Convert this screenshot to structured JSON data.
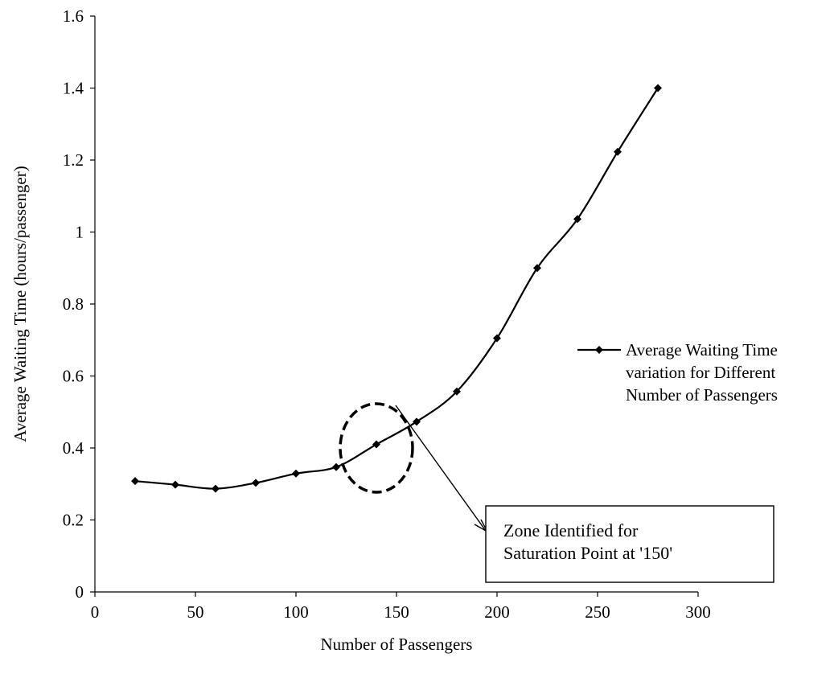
{
  "chart_data": {
    "type": "line",
    "title": "",
    "xlabel": "Number of Passengers",
    "ylabel": "Average Waiting Time (hours/passenger)",
    "xlim": [
      0,
      300
    ],
    "ylim": [
      0,
      1.6
    ],
    "xticks": [
      0,
      50,
      100,
      150,
      200,
      250,
      300
    ],
    "yticks": [
      0,
      0.2,
      0.4,
      0.6,
      0.8,
      1,
      1.2,
      1.4,
      1.6
    ],
    "xtick_labels": [
      "0",
      "50",
      "100",
      "150",
      "200",
      "250",
      "300"
    ],
    "ytick_labels": [
      "0",
      "0.2",
      "0.4",
      "0.6",
      "0.8",
      "1",
      "1.2",
      "1.4",
      "1.6"
    ],
    "grid": false,
    "legend_position": "right",
    "series": [
      {
        "name": "Average Waiting Time variation for Different Number of Passengers",
        "marker": "diamond",
        "color": "#000000",
        "x": [
          20,
          40,
          60,
          80,
          100,
          120,
          140,
          160,
          180,
          200,
          220,
          240,
          260,
          280
        ],
        "y": [
          0.308,
          0.298,
          0.287,
          0.303,
          0.329,
          0.347,
          0.41,
          0.473,
          0.557,
          0.705,
          0.9,
          1.036,
          1.223,
          1.4
        ]
      }
    ],
    "legend_lines": [
      "Average Waiting Time",
      "variation for Different",
      "Number of Passengers"
    ],
    "annotation": {
      "lines": [
        "Zone Identified for",
        "Saturation Point at '150'"
      ],
      "circle_center": [
        140,
        0.4
      ]
    }
  }
}
